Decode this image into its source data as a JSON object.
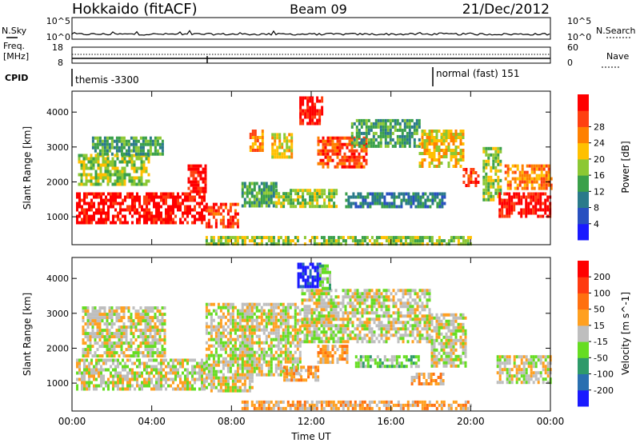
{
  "header": {
    "station": "Hokkaido (fitACF)",
    "beam": "Beam 09",
    "date": "21/Dec/2012"
  },
  "strip": {
    "nsky_label": "N.Sky",
    "nsearch_label": "N.Search",
    "noise_ticks_left": [
      "10^5",
      "10^0"
    ],
    "noise_ticks_right": [
      "10^5",
      "10^0"
    ],
    "freq_label_line1": "Freq.",
    "freq_label_line2": "[MHz]",
    "freq_ticks": [
      "18",
      "8"
    ],
    "nave_label": "Nave",
    "nave_ticks": [
      "60",
      "0"
    ],
    "cpid_label": "CPID",
    "cpid_segments": [
      "themis -3300",
      "normal (fast) 151"
    ]
  },
  "chart_data": [
    {
      "type": "heatmap",
      "name": "power-panel",
      "xlabel": "",
      "ylabel": "Slant Range [km]",
      "x_ticks": [
        "00:00",
        "04:00",
        "08:00",
        "12:00",
        "16:00",
        "20:00",
        "00:00"
      ],
      "y_ticks": [
        "1000",
        "2000",
        "3000",
        "4000"
      ],
      "ylim": [
        200,
        4600
      ],
      "xlim_hours": [
        0,
        24
      ],
      "colorbar": {
        "label": "Power [dB]",
        "ticks": [
          "4",
          "8",
          "12",
          "16",
          "20",
          "24",
          "28"
        ],
        "colors": [
          "#1a1aff",
          "#2850c0",
          "#2a7a8a",
          "#3aa04a",
          "#8cc834",
          "#ffc000",
          "#ff8000",
          "#ff4010",
          "#ff0000"
        ]
      },
      "regions": [
        {
          "t0": 0.2,
          "t1": 6.7,
          "r0": 800,
          "r1": 1700,
          "level": 8
        },
        {
          "t0": 5.8,
          "t1": 6.7,
          "r0": 1700,
          "r1": 2500,
          "level": 8
        },
        {
          "t0": 6.7,
          "t1": 8.3,
          "r0": 700,
          "r1": 1400,
          "level": 7
        },
        {
          "t0": 0.3,
          "t1": 3.8,
          "r0": 1900,
          "r1": 2800,
          "level": 4
        },
        {
          "t0": 1.0,
          "t1": 4.5,
          "r0": 2800,
          "r1": 3300,
          "level": 3
        },
        {
          "t0": 8.5,
          "t1": 10.2,
          "r0": 1300,
          "r1": 2000,
          "level": 3
        },
        {
          "t0": 8.9,
          "t1": 9.6,
          "r0": 2900,
          "r1": 3500,
          "level": 6
        },
        {
          "t0": 10.0,
          "t1": 11.0,
          "r0": 2700,
          "r1": 3400,
          "level": 5
        },
        {
          "t0": 11.4,
          "t1": 12.6,
          "r0": 3700,
          "r1": 4450,
          "level": 8
        },
        {
          "t0": 12.3,
          "t1": 14.8,
          "r0": 2400,
          "r1": 3300,
          "level": 7
        },
        {
          "t0": 14.0,
          "t1": 17.4,
          "r0": 3000,
          "r1": 3800,
          "level": 3
        },
        {
          "t0": 17.4,
          "t1": 19.6,
          "r0": 2400,
          "r1": 3500,
          "level": 5
        },
        {
          "t0": 19.6,
          "t1": 20.4,
          "r0": 1900,
          "r1": 2400,
          "level": 7
        },
        {
          "t0": 10.2,
          "t1": 13.3,
          "r0": 1300,
          "r1": 1800,
          "level": 4
        },
        {
          "t0": 13.7,
          "t1": 18.7,
          "r0": 1300,
          "r1": 1700,
          "level": 2
        },
        {
          "t0": 20.6,
          "t1": 21.5,
          "r0": 1500,
          "r1": 3000,
          "level": 4
        },
        {
          "t0": 21.4,
          "t1": 24.0,
          "r0": 1000,
          "r1": 1700,
          "level": 8
        },
        {
          "t0": 21.7,
          "t1": 24.0,
          "r0": 1800,
          "r1": 2500,
          "level": 6
        },
        {
          "t0": 6.7,
          "t1": 20.0,
          "r0": 250,
          "r1": 450,
          "level": 4
        }
      ]
    },
    {
      "type": "heatmap",
      "name": "velocity-panel",
      "xlabel": "Time UT",
      "ylabel": "Slant Range [km]",
      "x_ticks": [
        "00:00",
        "04:00",
        "08:00",
        "12:00",
        "16:00",
        "20:00",
        "00:00"
      ],
      "y_ticks": [
        "1000",
        "2000",
        "3000",
        "4000"
      ],
      "ylim": [
        200,
        4600
      ],
      "xlim_hours": [
        0,
        24
      ],
      "colorbar": {
        "label": "Velocity [m s^-1]",
        "ticks": [
          "200",
          "100",
          "50",
          "15",
          "-15",
          "-50",
          "-100",
          "-200"
        ],
        "colors": [
          "#1a1aff",
          "#2a6fb0",
          "#2e9a6a",
          "#66dd22",
          "#bebebe",
          "#ffa020",
          "#ff7010",
          "#ff3a10",
          "#ff0000"
        ]
      },
      "regions": [
        {
          "t0": 0.2,
          "t1": 6.7,
          "r0": 800,
          "r1": 1700,
          "level": 4
        },
        {
          "t0": 0.5,
          "t1": 4.6,
          "r0": 1800,
          "r1": 3200,
          "level": 4
        },
        {
          "t0": 6.7,
          "t1": 9.0,
          "r0": 800,
          "r1": 3300,
          "level": 4
        },
        {
          "t0": 8.5,
          "t1": 11.5,
          "r0": 1200,
          "r1": 3300,
          "level": 4
        },
        {
          "t0": 11.5,
          "t1": 18.0,
          "r0": 2200,
          "r1": 3700,
          "level": 4
        },
        {
          "t0": 18.0,
          "t1": 19.8,
          "r0": 1500,
          "r1": 3000,
          "level": 4
        },
        {
          "t0": 21.3,
          "t1": 24.0,
          "r0": 1000,
          "r1": 1800,
          "level": 4
        },
        {
          "t0": 11.3,
          "t1": 12.4,
          "r0": 3800,
          "r1": 4450,
          "level": 0
        },
        {
          "t0": 12.4,
          "t1": 12.9,
          "r0": 3700,
          "r1": 4400,
          "level": 3
        },
        {
          "t0": 10.6,
          "t1": 12.3,
          "r0": 1100,
          "r1": 1500,
          "level": 5
        },
        {
          "t0": 14.2,
          "t1": 17.4,
          "r0": 1500,
          "r1": 1800,
          "level": 3
        },
        {
          "t0": 17.0,
          "t1": 18.6,
          "r0": 1000,
          "r1": 1300,
          "level": 5
        },
        {
          "t0": 12.3,
          "t1": 13.8,
          "r0": 1600,
          "r1": 2100,
          "level": 5
        },
        {
          "t0": 8.5,
          "t1": 20.0,
          "r0": 300,
          "r1": 500,
          "level": 5
        }
      ]
    }
  ]
}
